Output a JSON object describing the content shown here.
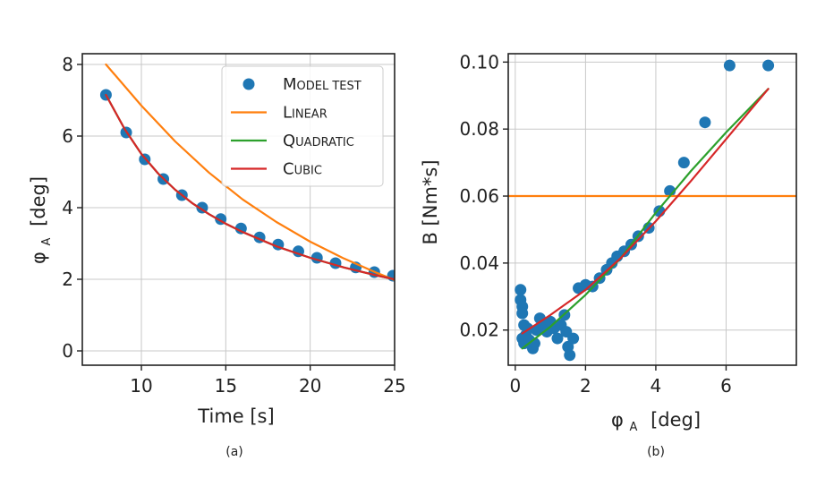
{
  "chart_data": [
    {
      "type": "line",
      "panel_label": "(a)",
      "xlabel": "Time [s]",
      "ylabel": "φ",
      "ylabel_sub": "A",
      "ylabel_unit": "[deg]",
      "xlim": [
        6.5,
        25
      ],
      "ylim": [
        -0.4,
        8.3
      ],
      "xticks": [
        10,
        15,
        20,
        25
      ],
      "yticks": [
        0,
        2,
        4,
        6,
        8
      ],
      "grid": true,
      "legend": {
        "position": "top-right",
        "entries": [
          {
            "label": "Model test",
            "display": "MODEL TEST",
            "color": "#1f77b4",
            "marker": "circle"
          },
          {
            "label": "Linear",
            "display": "LINEAR",
            "color": "#ff7f0e",
            "marker": "line"
          },
          {
            "label": "Quadratic",
            "display": "QUADRATIC",
            "color": "#2ca02c",
            "marker": "line"
          },
          {
            "label": "Cubic",
            "display": "CUBIC",
            "color": "#d62728",
            "marker": "line"
          }
        ]
      },
      "series": [
        {
          "name": "Model test",
          "style": "scatter",
          "color": "#1f77b4",
          "x": [
            7.9,
            9.1,
            10.2,
            11.3,
            12.4,
            13.6,
            14.7,
            15.9,
            17.0,
            18.1,
            19.3,
            20.4,
            21.5,
            22.7,
            23.8,
            24.9
          ],
          "y": [
            7.15,
            6.1,
            5.35,
            4.8,
            4.35,
            4.0,
            3.68,
            3.42,
            3.17,
            2.97,
            2.78,
            2.6,
            2.45,
            2.33,
            2.2,
            2.1
          ]
        },
        {
          "name": "Linear",
          "style": "line",
          "color": "#ff7f0e",
          "x": [
            7.9,
            10,
            12,
            14,
            16,
            18,
            20,
            22,
            24,
            25
          ],
          "y": [
            8.0,
            6.85,
            5.85,
            4.98,
            4.23,
            3.6,
            3.05,
            2.58,
            2.17,
            1.98
          ]
        },
        {
          "name": "Quadratic",
          "style": "line",
          "color": "#2ca02c",
          "x": [
            7.9,
            9,
            10,
            11,
            12,
            13,
            14,
            15,
            16,
            18,
            20,
            22,
            24,
            25
          ],
          "y": [
            7.15,
            6.2,
            5.5,
            4.95,
            4.5,
            4.13,
            3.82,
            3.55,
            3.32,
            2.92,
            2.6,
            2.33,
            2.1,
            2.0
          ]
        },
        {
          "name": "Cubic",
          "style": "line",
          "color": "#d62728",
          "x": [
            7.9,
            9,
            10,
            11,
            12,
            13,
            14,
            15,
            16,
            18,
            20,
            22,
            24,
            25
          ],
          "y": [
            7.15,
            6.2,
            5.5,
            4.95,
            4.5,
            4.13,
            3.82,
            3.55,
            3.32,
            2.92,
            2.6,
            2.33,
            2.1,
            2.0
          ]
        }
      ]
    },
    {
      "type": "scatter",
      "panel_label": "(b)",
      "xlabel": "φ",
      "xlabel_sub": "A",
      "xlabel_unit": "[deg]",
      "ylabel": "B [Nm*s]",
      "xlim": [
        -0.2,
        8.0
      ],
      "ylim": [
        0.0095,
        0.1025
      ],
      "xticks": [
        0,
        2,
        4,
        6
      ],
      "yticks": [
        0.02,
        0.04,
        0.06,
        0.08,
        0.1
      ],
      "ytick_labels": [
        "0.02",
        "0.04",
        "0.06",
        "0.08",
        "0.10"
      ],
      "grid": true,
      "series": [
        {
          "name": "Model test",
          "style": "scatter",
          "color": "#1f77b4",
          "x": [
            0.15,
            0.15,
            0.2,
            0.2,
            0.25,
            0.2,
            0.25,
            0.3,
            0.35,
            0.4,
            0.5,
            0.55,
            0.6,
            0.7,
            0.8,
            0.9,
            1.0,
            1.1,
            1.2,
            1.3,
            1.4,
            1.45,
            1.5,
            1.55,
            1.65,
            1.8,
            2.0,
            2.2,
            2.4,
            2.6,
            2.75,
            2.9,
            3.1,
            3.3,
            3.5,
            3.8,
            4.1,
            4.4,
            4.8,
            5.4,
            6.1,
            7.2
          ],
          "y": [
            0.032,
            0.029,
            0.027,
            0.025,
            0.0215,
            0.0175,
            0.016,
            0.0185,
            0.0205,
            0.017,
            0.0145,
            0.016,
            0.02,
            0.0235,
            0.0215,
            0.0195,
            0.0225,
            0.0205,
            0.0175,
            0.0215,
            0.0245,
            0.0195,
            0.015,
            0.0125,
            0.0175,
            0.0325,
            0.0335,
            0.033,
            0.0355,
            0.038,
            0.04,
            0.042,
            0.0435,
            0.0455,
            0.048,
            0.0505,
            0.0555,
            0.0615,
            0.07,
            0.082,
            0.099,
            0.099
          ]
        },
        {
          "name": "Linear",
          "style": "line",
          "color": "#ff7f0e",
          "x": [
            -0.2,
            8.0
          ],
          "y": [
            0.06,
            0.06
          ]
        },
        {
          "name": "Quadratic",
          "style": "line",
          "color": "#2ca02c",
          "x": [
            0.2,
            1.0,
            2.0,
            3.0,
            4.0,
            5.0,
            6.0,
            7.2
          ],
          "y": [
            0.0145,
            0.021,
            0.0305,
            0.0415,
            0.055,
            0.0675,
            0.079,
            0.092
          ]
        },
        {
          "name": "Cubic",
          "style": "line",
          "color": "#d62728",
          "x": [
            0.2,
            1.0,
            2.0,
            3.0,
            4.0,
            5.0,
            6.0,
            7.2
          ],
          "y": [
            0.019,
            0.0245,
            0.032,
            0.0415,
            0.0525,
            0.0645,
            0.077,
            0.092
          ]
        }
      ]
    }
  ]
}
